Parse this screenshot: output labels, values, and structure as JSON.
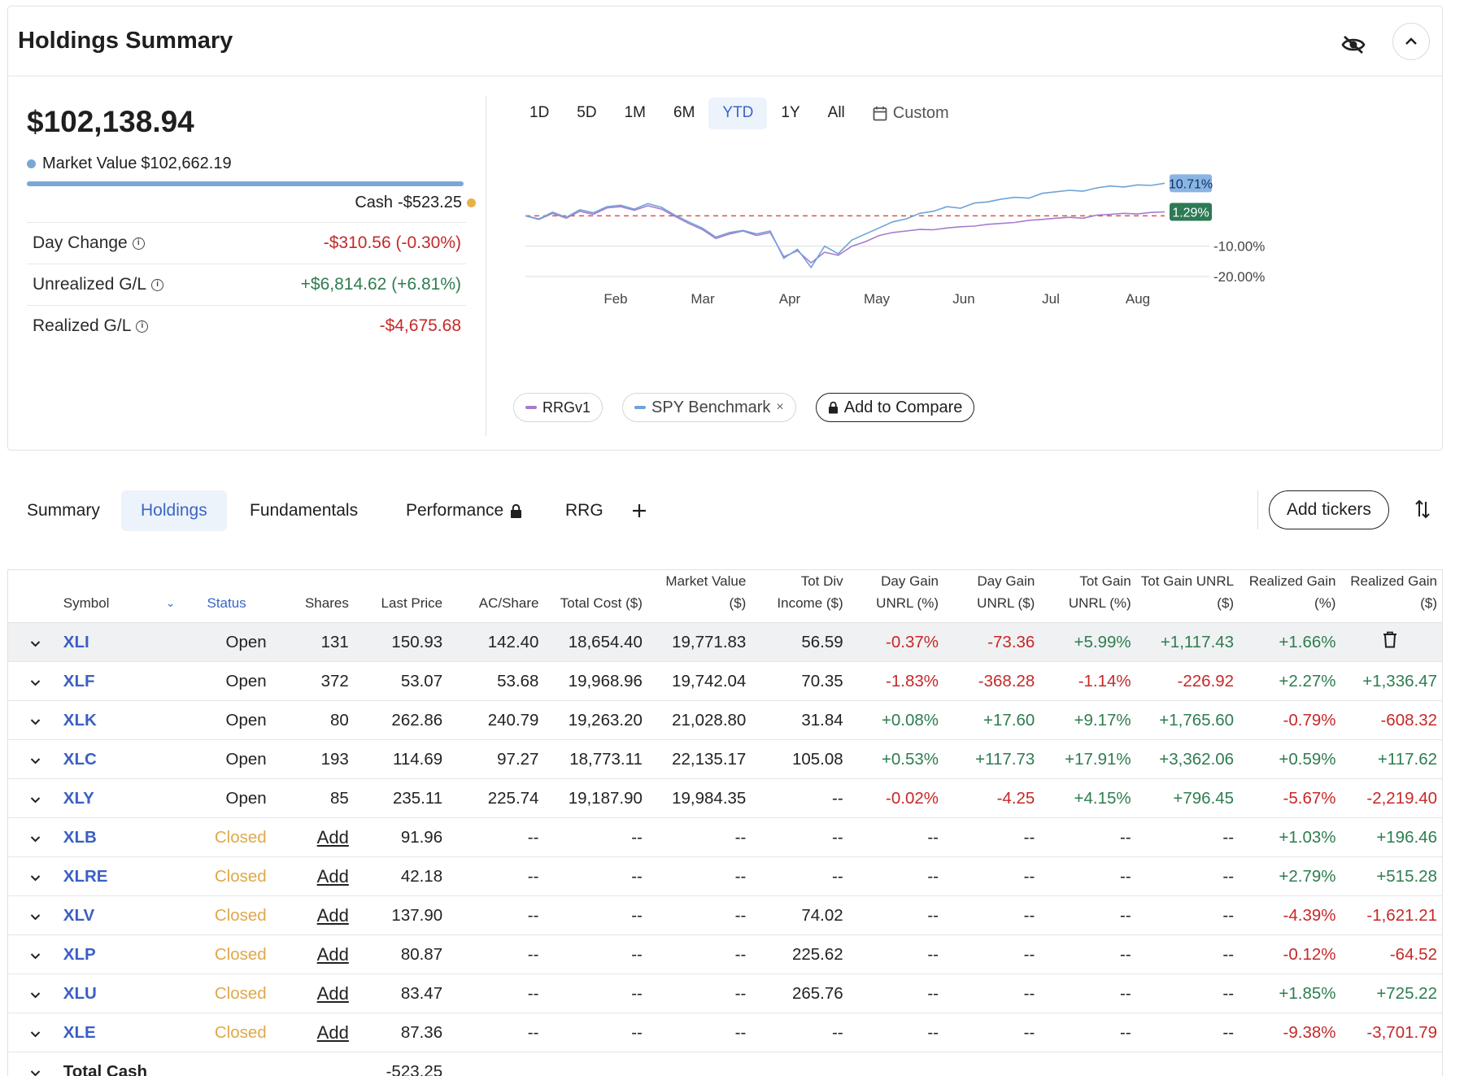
{
  "header": {
    "title": "Holdings Summary"
  },
  "summary": {
    "total_value": "$102,138.94",
    "market_value_label": "Market Value",
    "market_value": "$102,662.19",
    "cash_label": "Cash",
    "cash_value": "-$523.25",
    "colors": {
      "market_value_dot": "#7aa7d6",
      "cash_dot": "#e8b14a",
      "negative": "#c62828",
      "positive": "#2e7d4f"
    },
    "metrics": [
      {
        "label": "Day Change",
        "value": "-$310.56 (-0.30%)",
        "sign": "neg"
      },
      {
        "label": "Unrealized G/L",
        "value": "+$6,814.62 (+6.81%)",
        "sign": "pos"
      },
      {
        "label": "Realized G/L",
        "value": "-$4,675.68",
        "sign": "neg"
      }
    ]
  },
  "chart_controls": {
    "ranges": [
      "1D",
      "5D",
      "1M",
      "6M",
      "YTD",
      "1Y",
      "All"
    ],
    "active_range": "YTD",
    "custom_label": "Custom"
  },
  "chart_data": {
    "type": "line",
    "x_ticks": [
      "Feb",
      "Mar",
      "Apr",
      "May",
      "Jun",
      "Jul",
      "Aug"
    ],
    "y_ticks": [
      "-10.00%",
      "-20.00%"
    ],
    "ylim": [
      -20,
      10
    ],
    "end_labels": {
      "spy": "10.71%",
      "rrg": "1.29%"
    },
    "baseline": 0,
    "series": [
      {
        "name": "SPY Benchmark",
        "color": "#6fa3d8",
        "values": [
          0,
          -1,
          1.2,
          -0.5,
          2,
          1,
          3,
          3.5,
          2.2,
          4,
          2.8,
          0.2,
          -2,
          -4,
          -7,
          -5.5,
          -4.8,
          -6,
          -5,
          -14,
          -11,
          -17,
          -10,
          -12.5,
          -8,
          -6,
          -4,
          -2,
          -1,
          0.8,
          1.5,
          3,
          2.5,
          4.2,
          4.6,
          5.5,
          6.1,
          5.8,
          7.4,
          7.9,
          8.4,
          8.1,
          9.2,
          9.8,
          9.5,
          10.2,
          10,
          10.71
        ]
      },
      {
        "name": "RRGv1",
        "color": "#a77bd0",
        "values": [
          0,
          -1.2,
          0.8,
          -0.8,
          1.5,
          0.5,
          2.6,
          3,
          1.8,
          3.3,
          2.2,
          -0.2,
          -2.5,
          -4.5,
          -7.5,
          -6,
          -5,
          -6.5,
          -5.5,
          -13.5,
          -11.5,
          -15.5,
          -12,
          -13,
          -10,
          -8.5,
          -6.5,
          -5.5,
          -5,
          -4.5,
          -4.6,
          -4,
          -3.6,
          -3.4,
          -2.8,
          -2.5,
          -2.2,
          -1.5,
          -1.2,
          -0.8,
          -0.5,
          -0.8,
          0.2,
          0.5,
          0.8,
          0.6,
          1.1,
          1.29
        ]
      }
    ]
  },
  "legend": {
    "chips": [
      {
        "label": "RRGv1",
        "color": "#a77bd0"
      },
      {
        "label": "SPY Benchmark",
        "color": "#6fa3d8",
        "removable": "×"
      }
    ],
    "compare_label": "Add to Compare"
  },
  "view_tabs": {
    "items": [
      "Summary",
      "Holdings",
      "Fundamentals",
      "Performance",
      "RRG"
    ],
    "active": "Holdings",
    "add_tickers_label": "Add tickers"
  },
  "table": {
    "columns": [
      "Symbol",
      "Status",
      "Shares",
      "Last Price",
      "AC/Share",
      "Total Cost ($)",
      "Market Value ($)",
      "Tot Div Income ($)",
      "Day Gain UNRL (%)",
      "Day Gain UNRL ($)",
      "Tot Gain UNRL (%)",
      "Tot Gain UNRL ($)",
      "Realized Gain (%)",
      "Realized Gain ($)"
    ],
    "rows": [
      {
        "symbol": "XLI",
        "status": "Open",
        "shares": "131",
        "last": "150.93",
        "ac": "142.40",
        "cost": "18,654.40",
        "mv": "19,771.83",
        "div": "56.59",
        "dgp": "-0.37%",
        "dgd": "-73.36",
        "tgp": "+5.99%",
        "tgd": "+1,117.43",
        "rgp": "+1.66%",
        "rgd": ""
      },
      {
        "symbol": "XLF",
        "status": "Open",
        "shares": "372",
        "last": "53.07",
        "ac": "53.68",
        "cost": "19,968.96",
        "mv": "19,742.04",
        "div": "70.35",
        "dgp": "-1.83%",
        "dgd": "-368.28",
        "tgp": "-1.14%",
        "tgd": "-226.92",
        "rgp": "+2.27%",
        "rgd": "+1,336.47"
      },
      {
        "symbol": "XLK",
        "status": "Open",
        "shares": "80",
        "last": "262.86",
        "ac": "240.79",
        "cost": "19,263.20",
        "mv": "21,028.80",
        "div": "31.84",
        "dgp": "+0.08%",
        "dgd": "+17.60",
        "tgp": "+9.17%",
        "tgd": "+1,765.60",
        "rgp": "-0.79%",
        "rgd": "-608.32"
      },
      {
        "symbol": "XLC",
        "status": "Open",
        "shares": "193",
        "last": "114.69",
        "ac": "97.27",
        "cost": "18,773.11",
        "mv": "22,135.17",
        "div": "105.08",
        "dgp": "+0.53%",
        "dgd": "+117.73",
        "tgp": "+17.91%",
        "tgd": "+3,362.06",
        "rgp": "+0.59%",
        "rgd": "+117.62"
      },
      {
        "symbol": "XLY",
        "status": "Open",
        "shares": "85",
        "last": "235.11",
        "ac": "225.74",
        "cost": "19,187.90",
        "mv": "19,984.35",
        "div": "--",
        "dgp": "-0.02%",
        "dgd": "-4.25",
        "tgp": "+4.15%",
        "tgd": "+796.45",
        "rgp": "-5.67%",
        "rgd": "-2,219.40"
      },
      {
        "symbol": "XLB",
        "status": "Closed",
        "shares": "Add",
        "last": "91.96",
        "ac": "--",
        "cost": "--",
        "mv": "--",
        "div": "--",
        "dgp": "--",
        "dgd": "--",
        "tgp": "--",
        "tgd": "--",
        "rgp": "+1.03%",
        "rgd": "+196.46"
      },
      {
        "symbol": "XLRE",
        "status": "Closed",
        "shares": "Add",
        "last": "42.18",
        "ac": "--",
        "cost": "--",
        "mv": "--",
        "div": "--",
        "dgp": "--",
        "dgd": "--",
        "tgp": "--",
        "tgd": "--",
        "rgp": "+2.79%",
        "rgd": "+515.28"
      },
      {
        "symbol": "XLV",
        "status": "Closed",
        "shares": "Add",
        "last": "137.90",
        "ac": "--",
        "cost": "--",
        "mv": "--",
        "div": "74.02",
        "dgp": "--",
        "dgd": "--",
        "tgp": "--",
        "tgd": "--",
        "rgp": "-4.39%",
        "rgd": "-1,621.21"
      },
      {
        "symbol": "XLP",
        "status": "Closed",
        "shares": "Add",
        "last": "80.87",
        "ac": "--",
        "cost": "--",
        "mv": "--",
        "div": "225.62",
        "dgp": "--",
        "dgd": "--",
        "tgp": "--",
        "tgd": "--",
        "rgp": "-0.12%",
        "rgd": "-64.52"
      },
      {
        "symbol": "XLU",
        "status": "Closed",
        "shares": "Add",
        "last": "83.47",
        "ac": "--",
        "cost": "--",
        "mv": "--",
        "div": "265.76",
        "dgp": "--",
        "dgd": "--",
        "tgp": "--",
        "tgd": "--",
        "rgp": "+1.85%",
        "rgd": "+725.22"
      },
      {
        "symbol": "XLE",
        "status": "Closed",
        "shares": "Add",
        "last": "87.36",
        "ac": "--",
        "cost": "--",
        "mv": "--",
        "div": "--",
        "dgp": "--",
        "dgd": "--",
        "tgp": "--",
        "tgd": "--",
        "rgp": "-9.38%",
        "rgd": "-3,701.79"
      }
    ],
    "total_cash": {
      "label": "Total Cash",
      "value": "-523.25"
    },
    "status_colors": {
      "closed": "#e0a84a",
      "link": "#3a5fc4"
    }
  }
}
